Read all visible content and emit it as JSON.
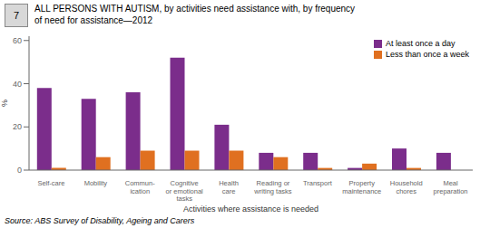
{
  "chart_data": {
    "type": "bar",
    "title": "ALL PERSONS WITH AUTISM, by activities need assistance with, by frequency\nof need for assistance—2012",
    "annotations": [
      "7",
      "Source: ABS Survey of Disability, Ageing and Carers"
    ],
    "xlabel": "Activities where assistance is needed",
    "ylabel": "%",
    "categories": [
      "Self-care",
      "Mobility",
      "Commun-\nication",
      "Cognitive\nor emotional\ntasks",
      "Health\ncare",
      "Reading or\nwriting tasks",
      "Transport",
      "Property\nmaintenance",
      "Household\nchores",
      "Meal\npreparation"
    ],
    "series": [
      {
        "name": "At least once a day",
        "color": "#7B2D8B",
        "values": [
          38,
          33,
          36,
          52,
          21,
          8,
          8,
          1,
          10,
          8
        ]
      },
      {
        "name": "Less than once a week",
        "color": "#E07020",
        "values": [
          1,
          6,
          9,
          9,
          9,
          6,
          1,
          3,
          1,
          0
        ]
      }
    ],
    "ylim": [
      0,
      62
    ],
    "yticks": [
      0,
      20,
      40,
      60
    ],
    "grid": false,
    "legend": "upper right"
  }
}
